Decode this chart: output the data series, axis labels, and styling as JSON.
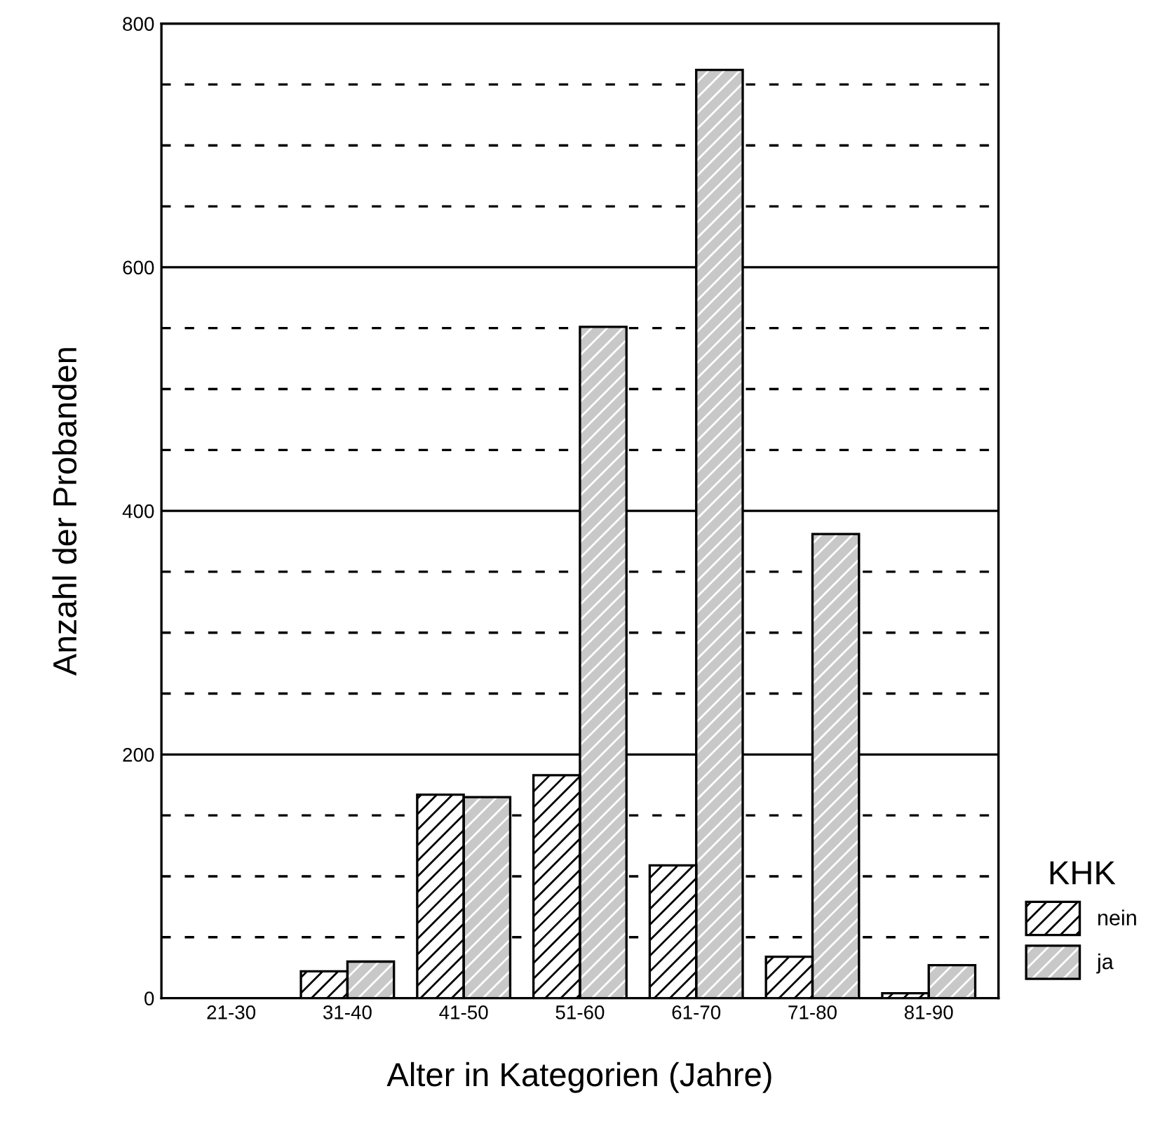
{
  "chart_data": {
    "type": "bar",
    "xlabel": "Alter in Kategorien (Jahre)",
    "ylabel": "Anzahl der Probanden",
    "legend_title": "KHK",
    "categories": [
      "21-30",
      "31-40",
      "41-50",
      "51-60",
      "61-70",
      "71-80",
      "81-90"
    ],
    "series": [
      {
        "name": "nein",
        "color": "#ffffff",
        "values": [
          0,
          22,
          167,
          183,
          109,
          34,
          4
        ]
      },
      {
        "name": "ja",
        "color": "#c8c8c8",
        "values": [
          0,
          30,
          165,
          551,
          762,
          381,
          27
        ]
      }
    ],
    "ylim": [
      0,
      800
    ],
    "yticks": [
      0,
      200,
      400,
      600,
      800
    ],
    "grid": "y",
    "legend": "bottom right"
  }
}
